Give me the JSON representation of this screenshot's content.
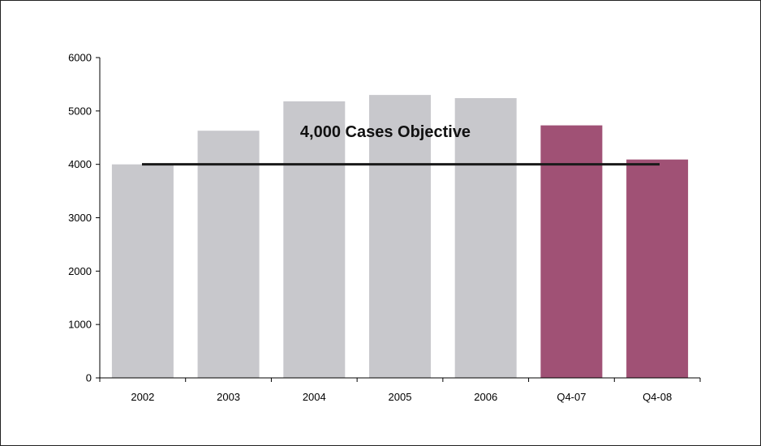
{
  "chart_data": {
    "type": "bar",
    "title": "",
    "xlabel": "",
    "ylabel": "",
    "categories": [
      "2002",
      "2003",
      "2004",
      "2005",
      "2006",
      "Q4-07",
      "Q4-08"
    ],
    "values": [
      4000,
      4630,
      5180,
      5300,
      5240,
      4730,
      4090
    ],
    "ylim": [
      0,
      6000
    ],
    "yticks": [
      "0",
      "1000",
      "2000",
      "3000",
      "4000",
      "5000",
      "6000"
    ],
    "grid": false,
    "legend": "none",
    "colors": {
      "historical": "#c8c8cc",
      "quarterly": "#a05175",
      "objective_line": "#1a1a1a"
    },
    "bar_color_keys": [
      "historical",
      "historical",
      "historical",
      "historical",
      "historical",
      "quarterly",
      "quarterly"
    ],
    "reference_line": {
      "value": 4000,
      "label": "4,000 Cases Objective"
    }
  }
}
